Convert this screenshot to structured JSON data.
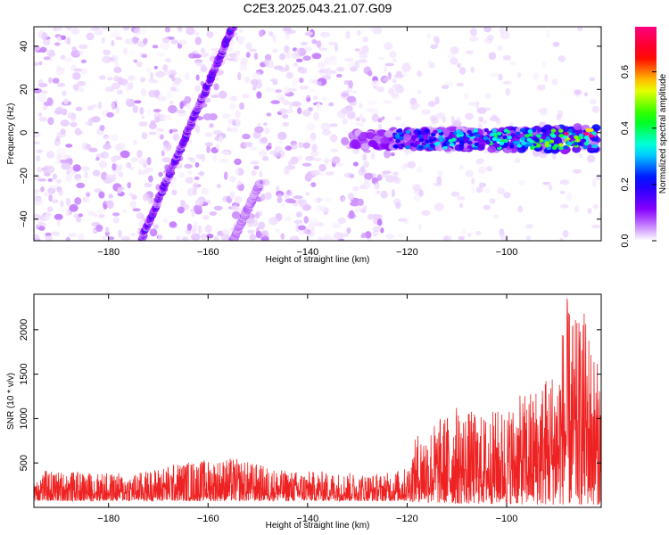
{
  "title": "C2E3.2025.043.21.07.G09",
  "chart_data": [
    {
      "type": "heatmap",
      "xlabel": "Height of straight line (km)",
      "ylabel": "Frequency (Hz)",
      "xlim": [
        -195,
        -81
      ],
      "ylim": [
        -50,
        49
      ],
      "xticks": [
        -180,
        -160,
        -140,
        -120,
        -100
      ],
      "yticks": [
        -40,
        -20,
        0,
        20,
        40
      ],
      "colorbar": {
        "label": "Normalized spectral amplitude",
        "range": [
          0,
          0.76
        ],
        "ticks": [
          0,
          0.2,
          0.4,
          0.6
        ],
        "tick_labels": [
          "0.0",
          "0.2",
          "0.4",
          "0.6"
        ],
        "colors": [
          "#ffffff",
          "#8b00ff",
          "#0000ff",
          "#00ffff",
          "#00ff00",
          "#ffff00",
          "#ff0000",
          "#ff007f"
        ]
      },
      "features": [
        {
          "kind": "line",
          "x": [
            -173.5,
            -155
          ],
          "y": [
            -50,
            49
          ],
          "peak_amplitude": 0.25
        },
        {
          "kind": "line",
          "x": [
            -155,
            -149.5
          ],
          "y": [
            -50,
            -23
          ],
          "peak_amplitude": 0.15
        },
        {
          "kind": "band",
          "x": [
            -131,
            -82
          ],
          "y_center": -3,
          "y_halfwidth": 6,
          "peak_amplitude": 0.75
        }
      ]
    },
    {
      "type": "line",
      "xlabel": "Height of straight line (km)",
      "ylabel": "SNR (10 * v/v)",
      "xlim": [
        -195,
        -81
      ],
      "ylim": [
        0,
        2400
      ],
      "xticks": [
        -180,
        -160,
        -140,
        -120,
        -100
      ],
      "yticks": [
        500,
        1000,
        1500,
        2000
      ],
      "color": "#ee2222",
      "envelope": {
        "x": [
          -195,
          -185,
          -175,
          -165,
          -155,
          -145,
          -135,
          -125,
          -120,
          -118,
          -115,
          -110,
          -105,
          -100,
          -95,
          -90,
          -88,
          -86,
          -84,
          -82
        ],
        "y_min": [
          70,
          70,
          70,
          70,
          70,
          70,
          70,
          70,
          70,
          60,
          50,
          40,
          40,
          40,
          30,
          30,
          30,
          30,
          30,
          30
        ],
        "y_max": [
          420,
          400,
          380,
          520,
          560,
          420,
          400,
          380,
          450,
          850,
          950,
          1150,
          1050,
          1150,
          1350,
          1650,
          2380,
          2100,
          2250,
          1650
        ]
      }
    }
  ]
}
